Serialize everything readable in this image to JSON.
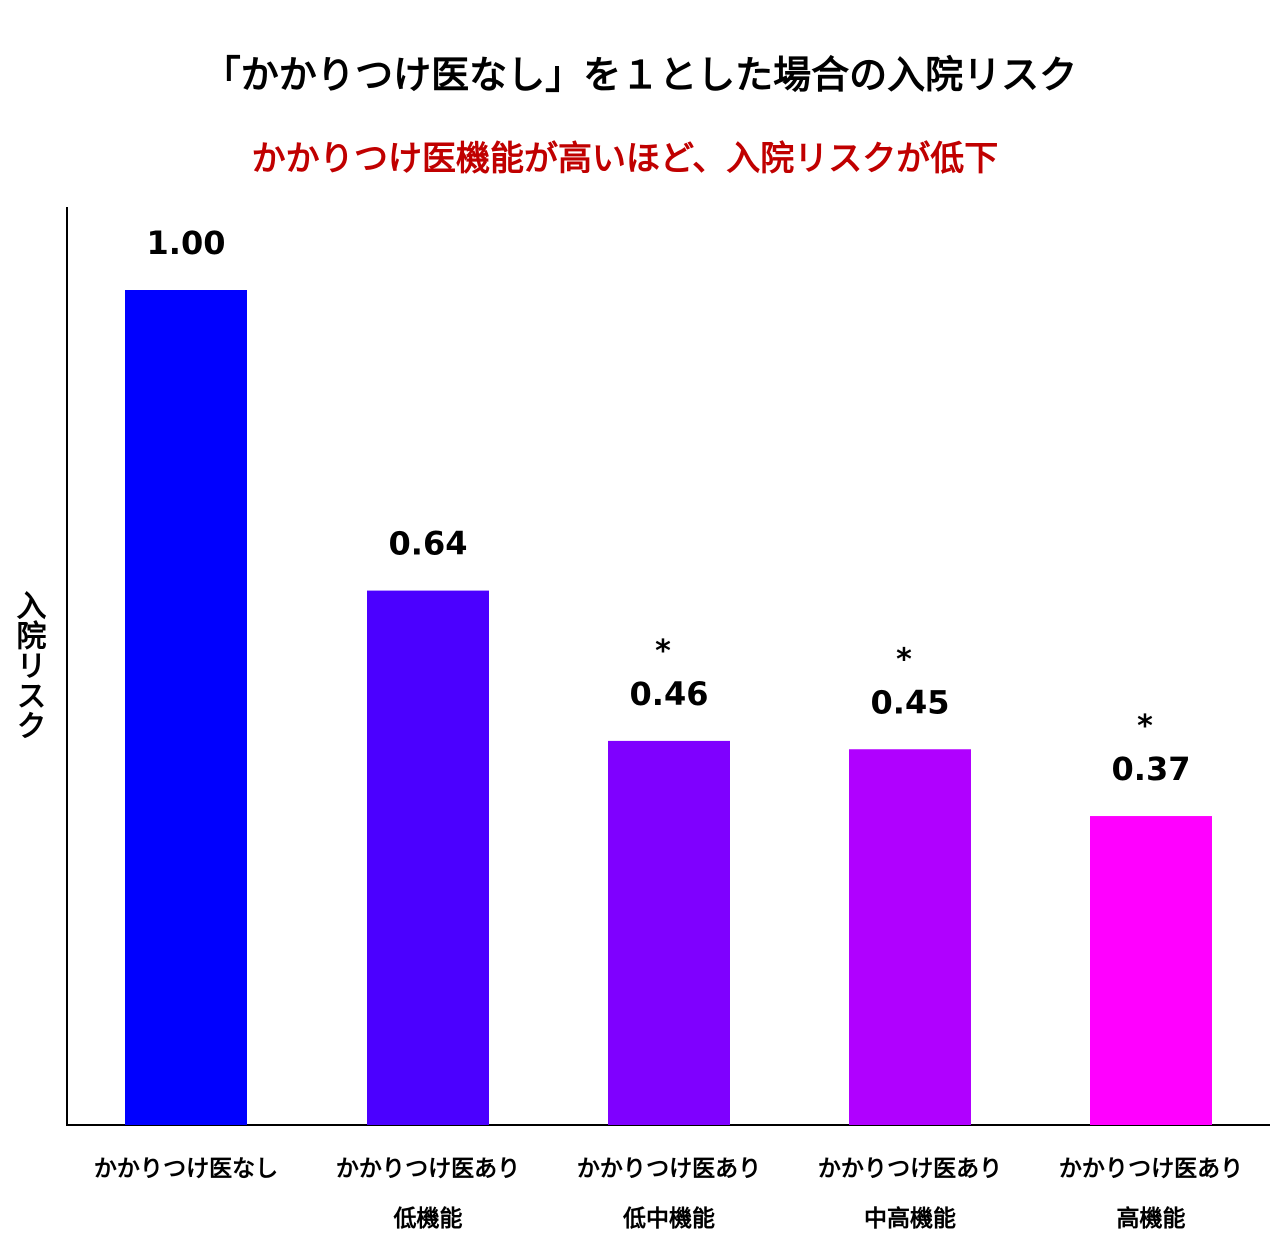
{
  "chart_data": {
    "type": "bar",
    "title": "「かかりつけ医なし」を１とした場合の入院リスク",
    "subtitle": "かかりつけ医機能が高いほど、入院リスクが低下",
    "ylabel": "入院リスク",
    "xlabel": "",
    "ylim": [
      0,
      1.1
    ],
    "grid": false,
    "legend": "none",
    "categories": [
      [
        "かかりつけ医なし"
      ],
      [
        "かかりつけ医あり",
        "低機能"
      ],
      [
        "かかりつけ医あり",
        "低中機能"
      ],
      [
        "かかりつけ医あり",
        "中高機能"
      ],
      [
        "かかりつけ医あり",
        "高機能"
      ]
    ],
    "values": [
      1.0,
      0.64,
      0.46,
      0.45,
      0.37
    ],
    "data_labels": [
      "1.00",
      "0.64",
      "0.46",
      "0.45",
      "0.37"
    ],
    "significance": [
      "",
      "",
      "*",
      "*",
      "*"
    ],
    "colors": [
      "#0000ff",
      "#4b00ff",
      "#7f00ff",
      "#b000ff",
      "#ff00ff"
    ],
    "subtitle_color": "#c00000"
  }
}
